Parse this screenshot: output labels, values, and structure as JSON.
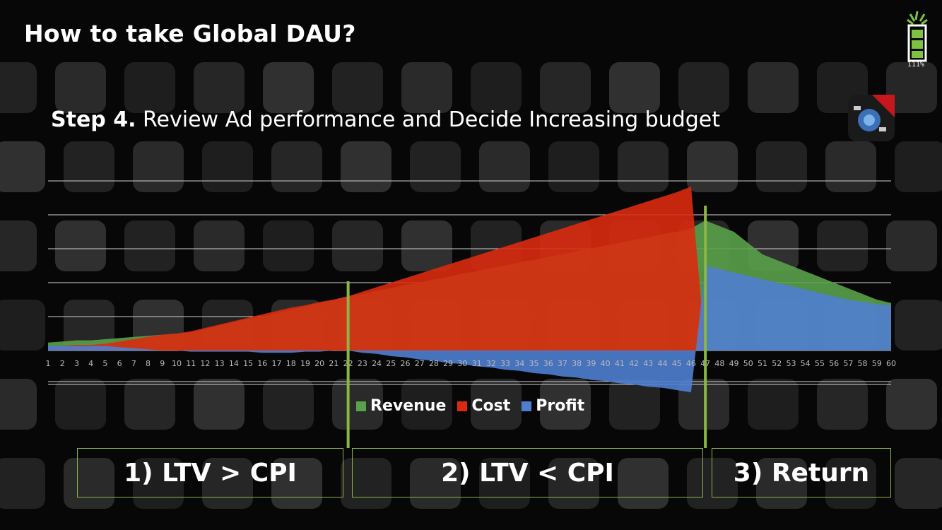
{
  "page": {
    "title": "How to take Global DAU?",
    "step_bold": "Step 4.",
    "step_text": " Review Ad performance and Decide Increasing budget",
    "logo_text": "111%"
  },
  "phases": [
    {
      "label": "1) LTV > CPI"
    },
    {
      "label": "2) LTV < CPI"
    },
    {
      "label": "3) Return"
    }
  ],
  "colors": {
    "revenue": "#5aa14b",
    "cost": "#d92b0e",
    "profit": "#4f7ed0",
    "accent": "#8bb548"
  },
  "chart_data": {
    "type": "area",
    "x": [
      1,
      2,
      3,
      4,
      5,
      6,
      7,
      8,
      9,
      10,
      11,
      12,
      13,
      14,
      15,
      16,
      17,
      18,
      19,
      20,
      21,
      22,
      23,
      24,
      25,
      26,
      27,
      28,
      29,
      30,
      31,
      32,
      33,
      34,
      35,
      36,
      37,
      38,
      39,
      40,
      41,
      42,
      43,
      44,
      45,
      46,
      47,
      48,
      49,
      50,
      51,
      52,
      53,
      54,
      55,
      56,
      57,
      58,
      59,
      60
    ],
    "series": [
      {
        "name": "Revenue",
        "values": [
          0.7,
          0.8,
          0.9,
          0.9,
          1.0,
          1.1,
          1.2,
          1.3,
          1.4,
          1.5,
          1.6,
          1.9,
          2.2,
          2.5,
          2.8,
          3.0,
          3.3,
          3.6,
          3.9,
          4.2,
          4.5,
          4.8,
          5.0,
          5.3,
          5.5,
          5.8,
          6.0,
          6.3,
          6.5,
          6.8,
          7.0,
          7.3,
          7.5,
          7.8,
          8.0,
          8.3,
          8.5,
          8.8,
          9.0,
          9.3,
          9.5,
          9.8,
          10.0,
          10.3,
          10.5,
          10.8,
          11.5,
          11.0,
          10.5,
          9.5,
          8.5,
          8.0,
          7.5,
          7.0,
          6.5,
          6.0,
          5.5,
          5.0,
          4.5,
          4.2
        ]
      },
      {
        "name": "Cost",
        "values": [
          0.3,
          0.4,
          0.5,
          0.5,
          0.6,
          0.8,
          1.0,
          1.2,
          1.4,
          1.5,
          1.7,
          2.0,
          2.3,
          2.6,
          2.9,
          3.2,
          3.5,
          3.8,
          4.0,
          4.3,
          4.5,
          4.8,
          5.2,
          5.6,
          6.0,
          6.4,
          6.8,
          7.2,
          7.6,
          8.0,
          8.4,
          8.8,
          9.2,
          9.6,
          10.0,
          10.4,
          10.8,
          11.2,
          11.6,
          12.0,
          12.4,
          12.8,
          13.2,
          13.6,
          14.0,
          14.5,
          0,
          0,
          0,
          0,
          0,
          0,
          0,
          0,
          0,
          0,
          0,
          0,
          0,
          0
        ]
      },
      {
        "name": "Profit",
        "values": [
          0.4,
          0.4,
          0.4,
          0.4,
          0.4,
          0.3,
          0.2,
          0.1,
          0.0,
          0.0,
          -0.1,
          -0.1,
          -0.1,
          -0.1,
          -0.1,
          -0.2,
          -0.2,
          -0.2,
          -0.1,
          -0.1,
          0.0,
          0.0,
          -0.2,
          -0.3,
          -0.5,
          -0.6,
          -0.8,
          -0.9,
          -1.1,
          -1.2,
          -1.4,
          -1.5,
          -1.7,
          -1.8,
          -2.0,
          -2.1,
          -2.3,
          -2.4,
          -2.6,
          -2.7,
          -2.9,
          -3.0,
          -3.2,
          -3.3,
          -3.5,
          -3.7,
          7.5,
          7.2,
          6.9,
          6.6,
          6.3,
          6.0,
          5.7,
          5.4,
          5.1,
          4.8,
          4.5,
          4.3,
          4.1,
          4.0
        ]
      }
    ],
    "xlabel": "",
    "ylabel": "",
    "grid": true,
    "legend_position": "bottom",
    "markers": [
      22,
      47
    ]
  }
}
